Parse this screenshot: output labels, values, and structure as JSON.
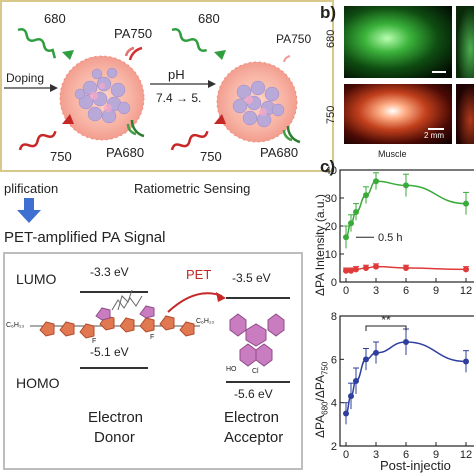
{
  "schematic": {
    "top_left": {
      "label_680": "680",
      "label_pa750": "PA750",
      "doping": "Doping",
      "label_750": "750",
      "label_pa680": "PA680"
    },
    "ph_arrow": {
      "label": "pH",
      "range": "7.4 → 5."
    },
    "top_right": {
      "label_680": "680",
      "label_pa750": "PA750",
      "label_750": "750",
      "label_pa680": "PA680"
    },
    "amplification_label": "plification",
    "ratiometric_label": "Ratiometric Sensing",
    "pet_title": "PET-amplified PA Signal"
  },
  "energy_diagram": {
    "lumo": "LUMO",
    "homo": "HOMO",
    "donor_lumo": "-3.3 eV",
    "donor_homo": "-5.1 eV",
    "acceptor_lumo": "-3.5 eV",
    "acceptor_homo": "-5.6 eV",
    "pet": "PET",
    "donor_label_1": "Electron",
    "donor_label_2": "Donor",
    "acceptor_label_1": "Electron",
    "acceptor_label_2": "Acceptor",
    "side_chain_left": "C₆H₁₃",
    "side_chain_right": "C₆H₁₃",
    "atom_f1": "F",
    "atom_f2": "F",
    "atom_ho": "HO",
    "atom_cl": "Cl"
  },
  "panel_b": {
    "label": "b)",
    "row_680": "680",
    "row_750": "750",
    "scale_bar": "2 mm",
    "caption": "Muscle"
  },
  "panel_c": {
    "label": "c)",
    "ylabel_top": "ΔPA Intensity (a.u.)",
    "annotation": "0.5 h",
    "significance": "**",
    "xlabel": "Post-injectio",
    "colors": {
      "green": "#3aaa3a",
      "red": "#e03a3a",
      "blue": "#2e3f9e"
    }
  },
  "chart_data": [
    {
      "type": "line",
      "ylabel": "ΔPA Intensity (a.u.)",
      "ylim": [
        0,
        40
      ],
      "yticks": [
        0,
        10,
        20,
        30,
        40
      ],
      "xticks": [
        0,
        3,
        6,
        9,
        12
      ],
      "series": [
        {
          "x": [
            0,
            0.5,
            1,
            2,
            3,
            6,
            12
          ],
          "y": [
            16,
            21,
            25,
            31,
            36,
            34.5,
            28
          ],
          "err": [
            4,
            3,
            3,
            3,
            3,
            4,
            4
          ],
          "color": "#3aaa3a"
        },
        {
          "x": [
            0,
            0.5,
            1,
            2,
            3,
            6,
            12
          ],
          "y": [
            4,
            4,
            4.5,
            5,
            5.5,
            5,
            4.5
          ],
          "err": [
            1,
            1,
            1,
            1,
            1,
            1,
            1
          ],
          "color": "#e03a3a"
        }
      ]
    },
    {
      "type": "line",
      "ylabel": "ΔPA680/ΔPA750",
      "ylim": [
        2,
        8
      ],
      "yticks": [
        2,
        4,
        6,
        8
      ],
      "xticks": [
        0,
        3,
        6,
        9,
        12
      ],
      "xlabel": "Post-injectio",
      "series": [
        {
          "x": [
            0,
            0.5,
            1,
            2,
            3,
            6,
            12
          ],
          "y": [
            3.5,
            4.3,
            5,
            6,
            6.3,
            6.8,
            5.9
          ],
          "err": [
            0.5,
            0.6,
            0.6,
            0.5,
            0.5,
            0.6,
            0.5
          ],
          "color": "#2e3f9e"
        }
      ]
    }
  ]
}
